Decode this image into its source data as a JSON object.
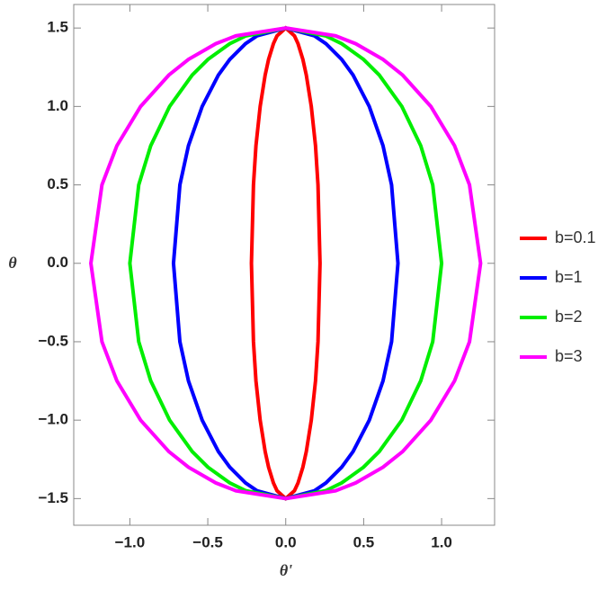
{
  "chart_data": {
    "type": "line",
    "x_label": "θ'",
    "y_label": "θ",
    "xlim": [
      -1.36,
      1.34
    ],
    "ylim": [
      -1.67,
      1.65
    ],
    "xticks": [
      {
        "value": -1.0,
        "label": "−1.0"
      },
      {
        "value": -0.5,
        "label": "−0.5"
      },
      {
        "value": 0,
        "label": "0.0"
      },
      {
        "value": 0.5,
        "label": "0.5"
      },
      {
        "value": 1.0,
        "label": "1.0"
      }
    ],
    "yticks": [
      {
        "value": -1.5,
        "label": "−1.5"
      },
      {
        "value": -1.0,
        "label": "−1.0"
      },
      {
        "value": -0.5,
        "label": "−0.5"
      },
      {
        "value": 0,
        "label": "0.0"
      },
      {
        "value": 0.5,
        "label": "0.5"
      },
      {
        "value": 1.0,
        "label": "1.0"
      },
      {
        "value": 1.5,
        "label": "1.5"
      }
    ],
    "y": [
      1.5,
      1.45,
      1.4,
      1.3,
      1.2,
      1.0,
      0.75,
      0.5,
      0,
      -0.5,
      -0.75,
      -1.0,
      -1.2,
      -1.3,
      -1.4,
      -1.45,
      -1.5,
      -1.45,
      -1.4,
      -1.3,
      -1.2,
      -1.0,
      -0.75,
      -0.5,
      0,
      0.5,
      0.75,
      1.0,
      1.2,
      1.3,
      1.4,
      1.45
    ],
    "series": [
      {
        "name": "b=0.1",
        "color": "#ff0000",
        "x": [
          0,
          0.056,
          0.079,
          0.11,
          0.132,
          0.164,
          0.191,
          0.207,
          0.22,
          0.207,
          0.191,
          0.164,
          0.132,
          0.11,
          0.079,
          0.056,
          0,
          -0.056,
          -0.079,
          -0.11,
          -0.132,
          -0.164,
          -0.191,
          -0.207,
          -0.22,
          -0.207,
          -0.191,
          -0.164,
          -0.132,
          -0.11,
          -0.079,
          -0.056
        ]
      },
      {
        "name": "b=1",
        "color": "#0000ff",
        "x": [
          0,
          0.184,
          0.258,
          0.359,
          0.432,
          0.536,
          0.624,
          0.679,
          0.72,
          0.679,
          0.624,
          0.536,
          0.432,
          0.359,
          0.258,
          0.184,
          0,
          -0.184,
          -0.258,
          -0.359,
          -0.432,
          -0.536,
          -0.624,
          -0.679,
          -0.72,
          -0.679,
          -0.624,
          -0.536,
          -0.432,
          -0.359,
          -0.258,
          -0.184
        ]
      },
      {
        "name": "b=2",
        "color": "#00ee00",
        "x": [
          0,
          0.256,
          0.359,
          0.499,
          0.6,
          0.745,
          0.866,
          0.943,
          1.0,
          0.943,
          0.866,
          0.745,
          0.6,
          0.499,
          0.359,
          0.256,
          0,
          -0.256,
          -0.359,
          -0.499,
          -0.6,
          -0.745,
          -0.866,
          -0.943,
          -1.0,
          -0.943,
          -0.866,
          -0.745,
          -0.6,
          -0.499,
          -0.359,
          -0.256
        ]
      },
      {
        "name": "b=3",
        "color": "#ff00ff",
        "x": [
          0,
          0.32,
          0.449,
          0.624,
          0.75,
          0.931,
          1.083,
          1.179,
          1.25,
          1.179,
          1.083,
          0.931,
          0.75,
          0.624,
          0.449,
          0.32,
          0,
          -0.32,
          -0.449,
          -0.624,
          -0.75,
          -0.931,
          -1.083,
          -1.179,
          -1.25,
          -1.179,
          -1.083,
          -0.931,
          -0.75,
          -0.624,
          -0.449,
          -0.32
        ]
      }
    ]
  }
}
